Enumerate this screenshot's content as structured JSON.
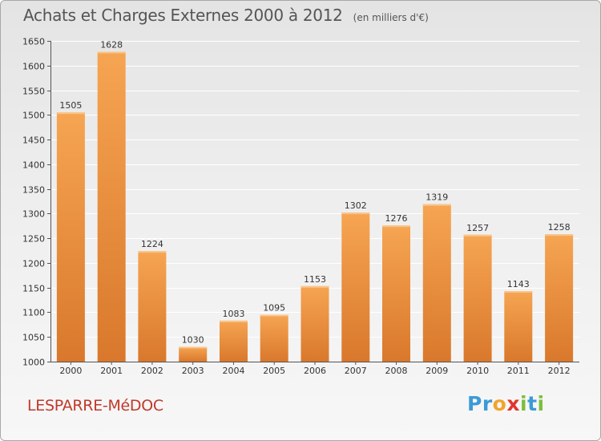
{
  "header": {
    "title": "Achats et Charges Externes 2000 à 2012",
    "subtitle": "(en milliers d'€)"
  },
  "footer": {
    "commune": "LESPARRE-MéDOC",
    "logo_letters": [
      "P",
      "r",
      "o",
      "x",
      "i",
      "t",
      "i"
    ],
    "logo_colors": [
      "#3d9ad6",
      "#3d9ad6",
      "#f1a42c",
      "#e2362b",
      "#7cbf3a",
      "#3d9ad6",
      "#7cbf3a"
    ]
  },
  "colors": {
    "bar_top": "#f6a552",
    "bar_bottom": "#d9782c",
    "grid": "#ffffff",
    "axis": "#555555"
  },
  "chart_data": {
    "type": "bar",
    "categories": [
      "2000",
      "2001",
      "2002",
      "2003",
      "2004",
      "2005",
      "2006",
      "2007",
      "2008",
      "2009",
      "2010",
      "2011",
      "2012"
    ],
    "values": [
      1505,
      1628,
      1224,
      1030,
      1083,
      1095,
      1153,
      1302,
      1276,
      1319,
      1257,
      1143,
      1258
    ],
    "title": "Achats et Charges Externes 2000 à 2012",
    "subtitle": "(en milliers d'€)",
    "ylim": [
      1000,
      1650
    ],
    "yticks": [
      1000,
      1050,
      1100,
      1150,
      1200,
      1250,
      1300,
      1350,
      1400,
      1450,
      1500,
      1550,
      1600,
      1650
    ],
    "grid": true,
    "data_labels": true
  }
}
